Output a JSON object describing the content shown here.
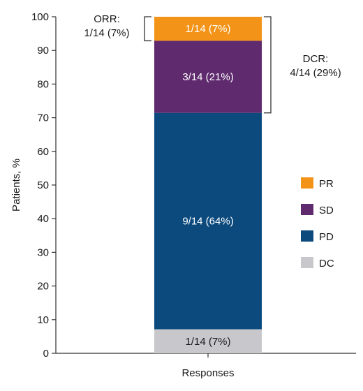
{
  "chart_data": {
    "type": "bar",
    "stacked": true,
    "categories": [
      "Responses"
    ],
    "series": [
      {
        "name": "DC",
        "values": [
          7.14
        ],
        "label": "1/14 (7%)",
        "color": "#c8c8cc"
      },
      {
        "name": "PD",
        "values": [
          64.29
        ],
        "label": "9/14 (64%)",
        "color": "#0c4a7e"
      },
      {
        "name": "SD",
        "values": [
          21.43
        ],
        "label": "3/14 (21%)",
        "color": "#5f2a6e"
      },
      {
        "name": "PR",
        "values": [
          7.14
        ],
        "label": "1/14 (7%)",
        "color": "#f39419"
      }
    ],
    "legend_order": [
      "PR",
      "SD",
      "PD",
      "DC"
    ],
    "legend_position": "right",
    "xlabel": "Responses",
    "ylabel": "Patients, %",
    "ylim": [
      0,
      100
    ],
    "yticks": [
      0,
      10,
      20,
      30,
      40,
      50,
      60,
      70,
      80,
      90,
      100
    ],
    "grid": false,
    "annotations": [
      {
        "lines": [
          "ORR:",
          "1/14 (7%)"
        ],
        "range": [
          92.86,
          100
        ],
        "side": "left"
      },
      {
        "lines": [
          "DCR:",
          "4/14 (29%)"
        ],
        "range": [
          71.43,
          100
        ],
        "side": "right"
      }
    ]
  }
}
